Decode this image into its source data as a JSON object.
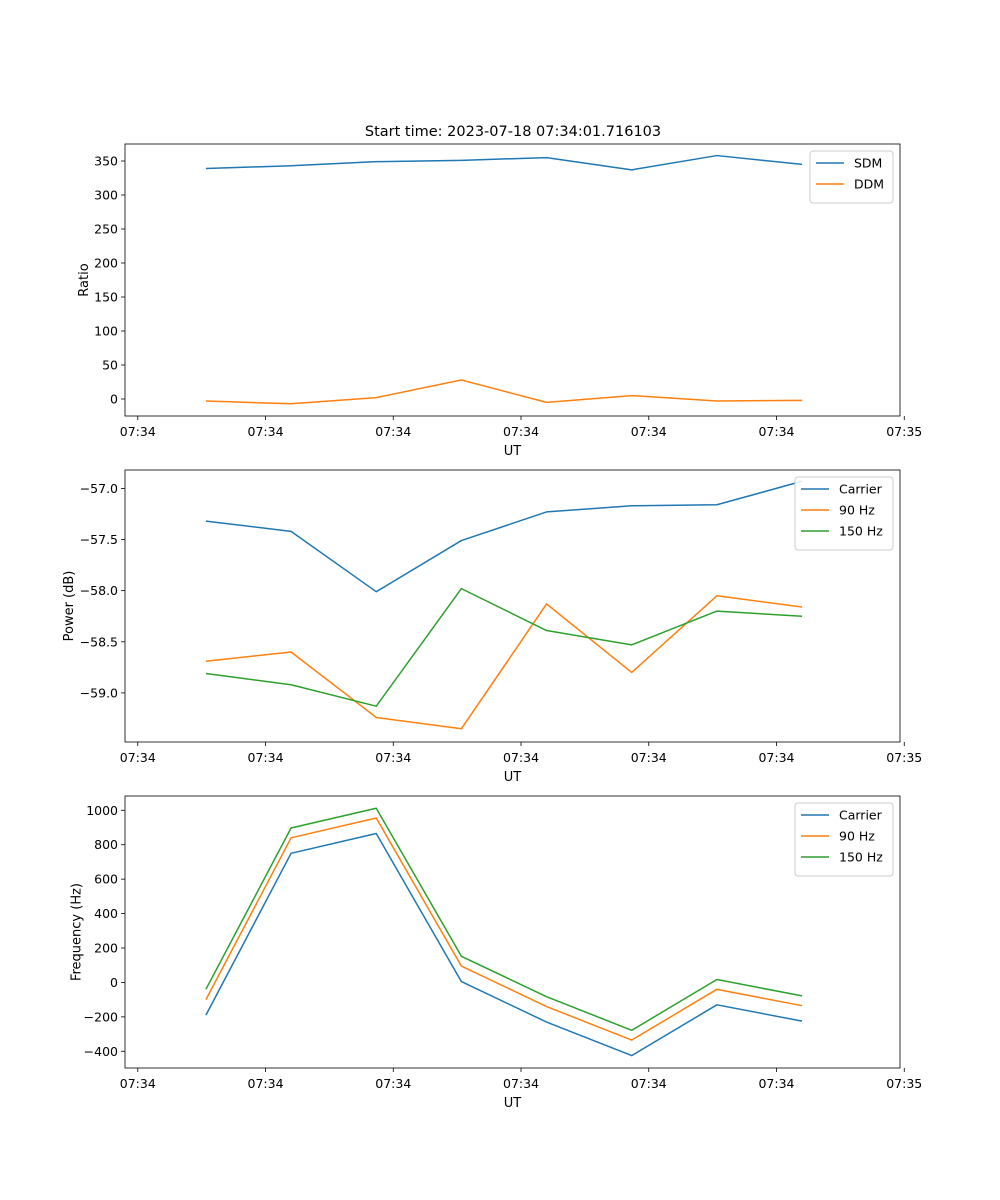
{
  "figure": {
    "title": "Start time: 2023-07-18 07:34:01.716103"
  },
  "colors": {
    "blue": "#1f77b4",
    "orange": "#ff7f0e",
    "green": "#2ca02c"
  },
  "chart_data": [
    {
      "type": "line",
      "title": "Start time: 2023-07-18 07:34:01.716103",
      "xlabel": "UT",
      "ylabel": "Ratio",
      "x": [
        1,
        2,
        3,
        4,
        5,
        6,
        7,
        8
      ],
      "xlim": [
        0.05,
        9.15
      ],
      "xticks": [
        0.2,
        1.7,
        3.2,
        4.7,
        6.2,
        7.7,
        9.2
      ],
      "xtick_labels": [
        "07:34",
        "07:34",
        "07:34",
        "07:34",
        "07:34",
        "07:34",
        "07:35"
      ],
      "ylim": [
        -25,
        375
      ],
      "yticks": [
        0,
        50,
        100,
        150,
        200,
        250,
        300,
        350
      ],
      "ytick_labels": [
        "0",
        "50",
        "100",
        "150",
        "200",
        "250",
        "300",
        "350"
      ],
      "legend_position": "top-right",
      "series": [
        {
          "name": "SDM",
          "color": "#1f77b4",
          "values": [
            339,
            343,
            349,
            351,
            355,
            337,
            358,
            345
          ]
        },
        {
          "name": "DDM",
          "color": "#ff7f0e",
          "values": [
            -3,
            -7,
            2,
            28,
            -5,
            5,
            -3,
            -2
          ]
        }
      ]
    },
    {
      "type": "line",
      "title": "",
      "xlabel": "UT",
      "ylabel": "Power (dB)",
      "x": [
        1,
        2,
        3,
        4,
        5,
        6,
        7,
        8
      ],
      "xlim": [
        0.05,
        9.15
      ],
      "xticks": [
        0.2,
        1.7,
        3.2,
        4.7,
        6.2,
        7.7,
        9.2
      ],
      "xtick_labels": [
        "07:34",
        "07:34",
        "07:34",
        "07:34",
        "07:34",
        "07:34",
        "07:35"
      ],
      "ylim": [
        -59.48,
        -56.82
      ],
      "yticks": [
        -59.0,
        -58.5,
        -58.0,
        -57.5,
        -57.0
      ],
      "ytick_labels": [
        "−59.0",
        "−58.5",
        "−58.0",
        "−57.5",
        "−57.0"
      ],
      "legend_position": "top-right",
      "series": [
        {
          "name": "Carrier",
          "color": "#1f77b4",
          "values": [
            -57.32,
            -57.42,
            -58.01,
            -57.51,
            -57.23,
            -57.17,
            -57.16,
            -56.93
          ]
        },
        {
          "name": "90 Hz",
          "color": "#ff7f0e",
          "values": [
            -58.69,
            -58.6,
            -59.24,
            -59.35,
            -58.13,
            -58.8,
            -58.05,
            -58.16
          ]
        },
        {
          "name": "150 Hz",
          "color": "#2ca02c",
          "values": [
            -58.81,
            -58.92,
            -59.13,
            -57.98,
            -58.39,
            -58.53,
            -58.2,
            -58.25
          ]
        }
      ]
    },
    {
      "type": "line",
      "title": "",
      "xlabel": "UT",
      "ylabel": "Frequency (Hz)",
      "x": [
        1,
        2,
        3,
        4,
        5,
        6,
        7,
        8
      ],
      "xlim": [
        0.05,
        9.15
      ],
      "xticks": [
        0.2,
        1.7,
        3.2,
        4.7,
        6.2,
        7.7,
        9.2
      ],
      "xtick_labels": [
        "07:34",
        "07:34",
        "07:34",
        "07:34",
        "07:34",
        "07:34",
        "07:35"
      ],
      "ylim": [
        -497,
        1083
      ],
      "yticks": [
        -400,
        -200,
        0,
        200,
        400,
        600,
        800,
        1000
      ],
      "ytick_labels": [
        "−400",
        "−200",
        "0",
        "200",
        "400",
        "600",
        "800",
        "1000"
      ],
      "legend_position": "top-right",
      "series": [
        {
          "name": "Carrier",
          "color": "#1f77b4",
          "values": [
            -190,
            750,
            865,
            5,
            -230,
            -425,
            -130,
            -225
          ]
        },
        {
          "name": "90 Hz",
          "color": "#ff7f0e",
          "values": [
            -100,
            840,
            955,
            95,
            -140,
            -335,
            -40,
            -135
          ]
        },
        {
          "name": "150 Hz",
          "color": "#2ca02c",
          "values": [
            -40,
            897,
            1012,
            152,
            -83,
            -278,
            17,
            -78
          ]
        }
      ]
    }
  ]
}
